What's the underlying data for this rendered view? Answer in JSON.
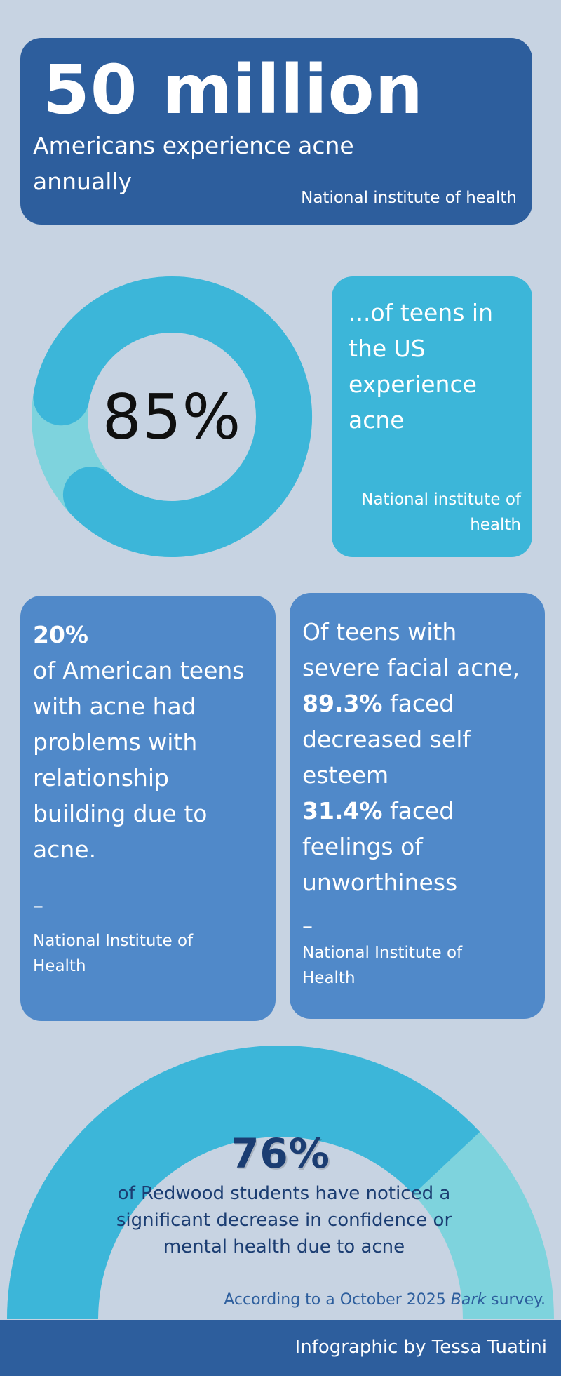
{
  "top_stat": {
    "value": "50 million",
    "caption": "Americans experience acne annually",
    "source": "National institute of health"
  },
  "teens_stat": {
    "value": "85%",
    "percent": 85,
    "text": "...of teens in the US experience acne",
    "source": "National institute of health"
  },
  "relationship_stat": {
    "value": "20%",
    "text": "of American teens with acne had problems with relationship building due to acne.",
    "dash": "–",
    "source": "National Institute of Health"
  },
  "esteem_stat": {
    "intro": "Of teens with severe facial acne,",
    "value_1": "89.3%",
    "text_1": "faced decreased self esteem",
    "value_2": "31.4%",
    "text_2": "faced feelings of unworthiness",
    "dash": "–",
    "source": "National Institute of Health"
  },
  "redwood_stat": {
    "value": "76%",
    "percent": 76,
    "caption": "of Redwood students have noticed a significant decrease in confidence or mental health due to acne",
    "note_prefix": "According to a October 2025",
    "note_italic": "Bark",
    "note_suffix": "survey."
  },
  "footer": {
    "credit": "Infographic by Tessa Tuatini"
  },
  "colors": {
    "background": "#c7d3e2",
    "dark_blue": "#2d5e9d",
    "mid_blue": "#5089c9",
    "cyan": "#3cb6d9",
    "light_cyan": "#7ed3dd",
    "text_navy": "#1b3d72"
  }
}
